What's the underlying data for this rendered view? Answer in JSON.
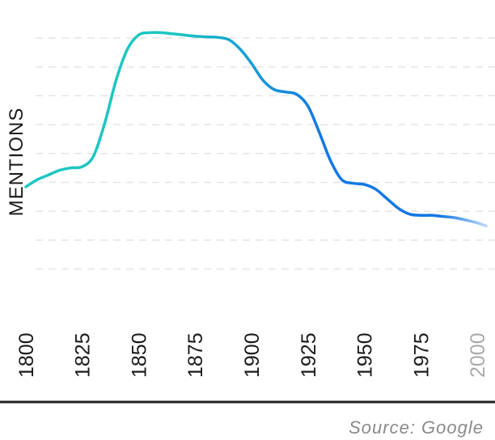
{
  "chart_data": {
    "type": "line",
    "title": "",
    "xlabel": "",
    "ylabel": "MENTIONS",
    "x": [
      1800,
      1805,
      1810,
      1815,
      1820,
      1825,
      1830,
      1835,
      1840,
      1845,
      1850,
      1855,
      1860,
      1865,
      1870,
      1875,
      1880,
      1885,
      1890,
      1895,
      1900,
      1905,
      1910,
      1915,
      1920,
      1925,
      1930,
      1935,
      1940,
      1945,
      1950,
      1955,
      1960,
      1965,
      1970,
      1975,
      1980,
      1985,
      1990,
      1995,
      2000,
      2004
    ],
    "series": [
      {
        "values": [
          4.5,
          4.8,
          5.0,
          5.2,
          5.3,
          5.35,
          5.8,
          7.2,
          9.0,
          10.3,
          10.9,
          11.0,
          11.0,
          10.95,
          10.9,
          10.85,
          10.82,
          10.8,
          10.7,
          10.3,
          9.7,
          9.0,
          8.6,
          8.5,
          8.4,
          7.9,
          6.8,
          5.6,
          4.8,
          4.65,
          4.6,
          4.4,
          4.0,
          3.6,
          3.35,
          3.3,
          3.3,
          3.25,
          3.2,
          3.1,
          2.98,
          2.85
        ]
      }
    ],
    "xticks": [
      "1800",
      "1825",
      "1850",
      "1875",
      "1900",
      "1925",
      "1950",
      "1975",
      "2000"
    ],
    "faded_ticks": [
      "2000"
    ],
    "ylim": [
      0,
      12
    ],
    "grid": "horizontal-dashed",
    "colors": {
      "line_start": "#1cc6c1",
      "line_end": "#1277e4",
      "grid": "#e4e4e4",
      "axis": "#1f1f1f",
      "faded_tick": "#a9a9a9",
      "source": "#8a8a8a"
    }
  },
  "source": "Source: Google"
}
